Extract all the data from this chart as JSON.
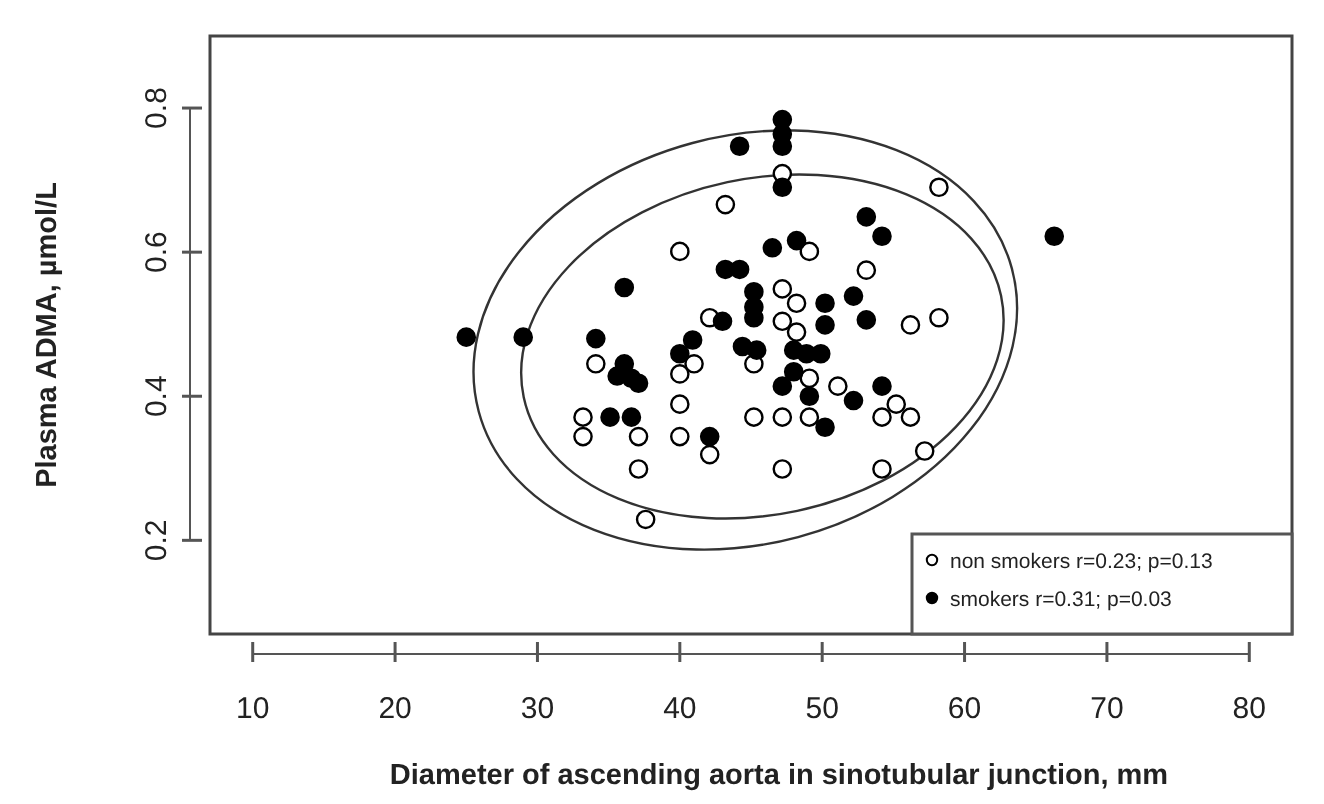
{
  "chart_data": {
    "type": "scatter",
    "xlabel": "Diameter of ascending aorta in sinotubular junction, mm",
    "ylabel": "Plasma ADMA, µmol/L",
    "xlim": [
      7,
      83
    ],
    "ylim": [
      0.07,
      0.9
    ],
    "xticks": [
      10,
      20,
      30,
      40,
      50,
      60,
      70,
      80
    ],
    "yticks": [
      0.2,
      0.4,
      0.6,
      0.8
    ],
    "legend": "bottom right",
    "grid": false,
    "series": [
      {
        "name": "non smokers r=0.23; p=0.13",
        "color": "#ffffff",
        "marker": "circle",
        "x": [
          34.1,
          33.2,
          33.2,
          37.1,
          37.1,
          37.6,
          40.0,
          40.0,
          40.0,
          41.0,
          40.0,
          42.1,
          42.1,
          43.2,
          45.2,
          45.2,
          47.2,
          47.2,
          47.2,
          48.2,
          47.2,
          48.2,
          49.1,
          49.1,
          49.1,
          51.1,
          53.1,
          54.2,
          55.2,
          56.2,
          56.2,
          58.2,
          57.2,
          54.2,
          58.2,
          47.2
        ],
        "values": [
          0.445,
          0.371,
          0.344,
          0.344,
          0.299,
          0.229,
          0.389,
          0.344,
          0.601,
          0.445,
          0.431,
          0.509,
          0.319,
          0.666,
          0.445,
          0.371,
          0.371,
          0.299,
          0.549,
          0.529,
          0.504,
          0.489,
          0.601,
          0.425,
          0.371,
          0.414,
          0.575,
          0.371,
          0.389,
          0.371,
          0.499,
          0.509,
          0.324,
          0.299,
          0.69,
          0.709
        ]
      },
      {
        "name": "smokers r=0.31; p=0.03",
        "color": "#000000",
        "marker": "circle",
        "x": [
          25.0,
          29.0,
          36.1,
          34.1,
          44.2,
          47.2,
          47.2,
          47.2,
          47.2,
          66.3,
          53.1,
          54.2,
          46.5,
          48.2,
          43.2,
          44.2,
          45.2,
          45.2,
          45.2,
          50.2,
          50.2,
          52.2,
          53.1,
          43.0,
          40.9,
          40.0,
          44.4,
          45.4,
          48.0,
          48.9,
          49.9,
          48.0,
          47.2,
          49.1,
          50.2,
          52.2,
          54.2,
          36.1,
          35.6,
          36.6,
          37.1,
          35.1,
          36.6,
          42.1
        ],
        "values": [
          0.482,
          0.482,
          0.551,
          0.48,
          0.747,
          0.784,
          0.764,
          0.747,
          0.69,
          0.622,
          0.649,
          0.622,
          0.606,
          0.616,
          0.576,
          0.576,
          0.545,
          0.524,
          0.509,
          0.529,
          0.499,
          0.539,
          0.506,
          0.504,
          0.478,
          0.459,
          0.469,
          0.464,
          0.464,
          0.459,
          0.459,
          0.434,
          0.414,
          0.4,
          0.357,
          0.394,
          0.414,
          0.445,
          0.428,
          0.425,
          0.418,
          0.371,
          0.371,
          0.344
        ]
      }
    ]
  }
}
